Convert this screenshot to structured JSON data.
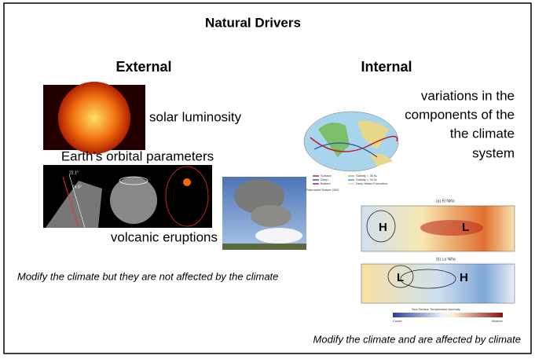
{
  "header": {
    "title": "Natural Drivers"
  },
  "external": {
    "heading": "External",
    "solar": "solar luminosity",
    "orbital": "Earth’s orbital parameters",
    "orbital_angles": [
      "22.1°",
      "24.5°"
    ],
    "volcanic": "volcanic eruptions",
    "note": "Modify the climate but they are not affected by the climate"
  },
  "internal": {
    "heading": "Internal",
    "description_lines": [
      "variations in the",
      "components of the",
      "the climate",
      "system"
    ],
    "map_legend": [
      "Surface",
      "Deep",
      "Bottom",
      "Salinity > 36 ‰",
      "Salinity < 34 ‰",
      "Deep Water Formation"
    ],
    "map_credit": "Rahmstorf Nature 2002",
    "panels": [
      {
        "title": "(a) El Niño",
        "high": "H",
        "low": "L"
      },
      {
        "title": "(b) La Niña",
        "high": "H",
        "low": "L"
      }
    ],
    "colorbar_title": "Sea Surface Temperature Anomaly",
    "colorbar_ends": [
      "Cooler",
      "Warmer"
    ],
    "note": "Modify the climate and are affected by climate"
  }
}
